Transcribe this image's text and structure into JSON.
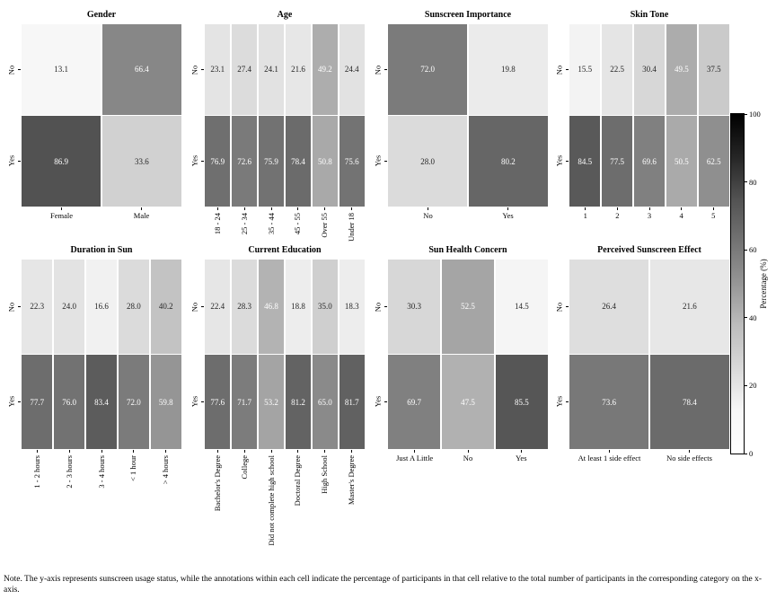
{
  "figure_note": "Note. The y-axis represents sunscreen usage status, while the annotations within each cell indicate the percentage of participants in that cell relative to the total number of participants in the corresponding category on the x-axis.",
  "y_axis": {
    "rows": [
      "No",
      "Yes"
    ]
  },
  "colorbar": {
    "label": "Percentage (%)",
    "ticks": [
      0,
      20,
      40,
      60,
      80,
      100
    ],
    "min": 0,
    "max": 100,
    "colormap": "Greys"
  },
  "annotation_colors": {
    "dark": "#262626",
    "light": "#ffffff"
  },
  "chart_data": [
    {
      "type": "heatmap",
      "title": "Gender",
      "x_categories": [
        "Female",
        "Male"
      ],
      "y_categories": [
        "No",
        "Yes"
      ],
      "series": [
        {
          "name": "No",
          "values": [
            13.1,
            66.4
          ]
        },
        {
          "name": "Yes",
          "values": [
            86.9,
            33.6
          ]
        }
      ],
      "x_tick_rotation": 0
    },
    {
      "type": "heatmap",
      "title": "Age",
      "x_categories": [
        "18 - 24",
        "25 - 34",
        "35 - 44",
        "45 - 55",
        "Over 55",
        "Under 18"
      ],
      "y_categories": [
        "No",
        "Yes"
      ],
      "series": [
        {
          "name": "No",
          "values": [
            23.1,
            27.4,
            24.1,
            21.6,
            49.2,
            24.4
          ]
        },
        {
          "name": "Yes",
          "values": [
            76.9,
            72.6,
            75.9,
            78.4,
            50.8,
            75.6
          ]
        }
      ],
      "x_tick_rotation": 90
    },
    {
      "type": "heatmap",
      "title": "Sunscreen Importance",
      "x_categories": [
        "No",
        "Yes"
      ],
      "y_categories": [
        "No",
        "Yes"
      ],
      "series": [
        {
          "name": "No",
          "values": [
            72.0,
            19.8
          ]
        },
        {
          "name": "Yes",
          "values": [
            28.0,
            80.2
          ]
        }
      ],
      "x_tick_rotation": 0
    },
    {
      "type": "heatmap",
      "title": "Skin Tone",
      "x_categories": [
        "1",
        "2",
        "3",
        "4",
        "5"
      ],
      "y_categories": [
        "No",
        "Yes"
      ],
      "series": [
        {
          "name": "No",
          "values": [
            15.5,
            22.5,
            30.4,
            49.5,
            37.5
          ]
        },
        {
          "name": "Yes",
          "values": [
            84.5,
            77.5,
            69.6,
            50.5,
            62.5
          ]
        }
      ],
      "x_tick_rotation": 0
    },
    {
      "type": "heatmap",
      "title": "Duration in Sun",
      "x_categories": [
        "1 - 2 hours",
        "2 - 3 hours",
        "3 - 4 hours",
        "< 1 hour",
        "> 4 hours"
      ],
      "y_categories": [
        "No",
        "Yes"
      ],
      "series": [
        {
          "name": "No",
          "values": [
            22.3,
            24.0,
            16.6,
            28.0,
            40.2
          ]
        },
        {
          "name": "Yes",
          "values": [
            77.7,
            76.0,
            83.4,
            72.0,
            59.8
          ]
        }
      ],
      "x_tick_rotation": 90
    },
    {
      "type": "heatmap",
      "title": "Current Education",
      "x_categories": [
        "Bachelor's Degree",
        "College",
        "Did not complete high school",
        "Doctoral Degree",
        "High School",
        "Master's Degree"
      ],
      "y_categories": [
        "No",
        "Yes"
      ],
      "series": [
        {
          "name": "No",
          "values": [
            22.4,
            28.3,
            46.8,
            18.8,
            35.0,
            18.3
          ]
        },
        {
          "name": "Yes",
          "values": [
            77.6,
            71.7,
            53.2,
            81.2,
            65.0,
            81.7
          ]
        }
      ],
      "x_tick_rotation": 90
    },
    {
      "type": "heatmap",
      "title": "Sun Health Concern",
      "x_categories": [
        "Just A Little",
        "No",
        "Yes"
      ],
      "y_categories": [
        "No",
        "Yes"
      ],
      "series": [
        {
          "name": "No",
          "values": [
            30.3,
            52.5,
            14.5
          ]
        },
        {
          "name": "Yes",
          "values": [
            69.7,
            47.5,
            85.5
          ]
        }
      ],
      "x_tick_rotation": 0
    },
    {
      "type": "heatmap",
      "title": "Perceived Sunscreen Effect",
      "x_categories": [
        "At least 1 side effect",
        "No side effects"
      ],
      "y_categories": [
        "No",
        "Yes"
      ],
      "series": [
        {
          "name": "No",
          "values": [
            26.4,
            21.6
          ]
        },
        {
          "name": "Yes",
          "values": [
            73.6,
            78.4
          ]
        }
      ],
      "x_tick_rotation": 0
    }
  ]
}
